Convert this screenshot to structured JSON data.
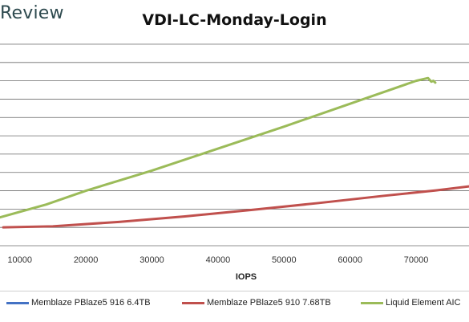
{
  "brand": "Review",
  "chart_data": {
    "type": "line",
    "title": "VDI-LC-Monday-Login",
    "xlabel": "IOPS",
    "ylabel": "",
    "xlim": [
      7000,
      78000
    ],
    "ylim": [
      0,
      11
    ],
    "x_ticks": [
      10000,
      20000,
      30000,
      40000,
      50000,
      60000,
      70000
    ],
    "grid": true,
    "legend": "bottom",
    "series": [
      {
        "name": "Memblaze PBlaze5 916 6.4TB",
        "color": "#4472c4",
        "points": []
      },
      {
        "name": "Memblaze PBlaze5 910 7.68TB",
        "color": "#c0504d",
        "points": [
          [
            7500,
            1.0
          ],
          [
            15000,
            1.06
          ],
          [
            25000,
            1.3
          ],
          [
            35000,
            1.6
          ],
          [
            45000,
            1.95
          ],
          [
            55000,
            2.32
          ],
          [
            65000,
            2.72
          ],
          [
            73000,
            3.02
          ],
          [
            78000,
            3.24
          ]
        ]
      },
      {
        "name": "Liquid Element AIC",
        "color": "#9bbb59",
        "points": [
          [
            7000,
            1.55
          ],
          [
            14000,
            2.25
          ],
          [
            20000,
            3.0
          ],
          [
            30000,
            4.1
          ],
          [
            40000,
            5.3
          ],
          [
            50000,
            6.5
          ],
          [
            60000,
            7.75
          ],
          [
            66000,
            8.5
          ],
          [
            70000,
            9.0
          ],
          [
            71800,
            9.15
          ],
          [
            72300,
            8.95
          ],
          [
            72600,
            9.0
          ],
          [
            72900,
            8.9
          ]
        ]
      }
    ]
  }
}
